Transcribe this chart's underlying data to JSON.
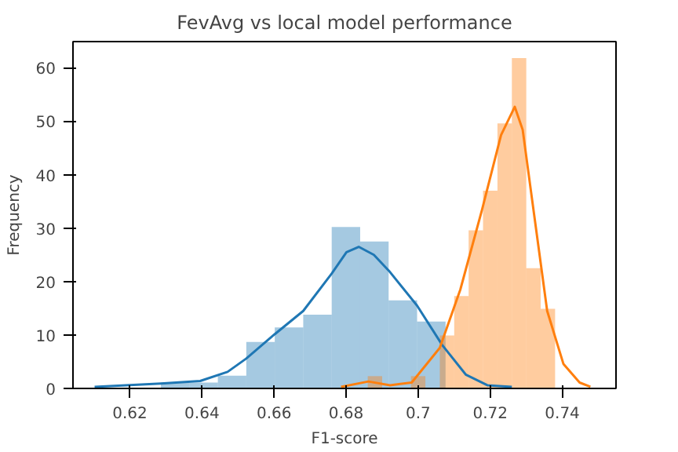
{
  "chart_data": {
    "type": "histogram",
    "title": "FevAvg vs local model performance",
    "xlabel": "F1-score",
    "ylabel": "Frequency",
    "xlim": [
      0.6042,
      0.7549
    ],
    "ylim": [
      0,
      64.9
    ],
    "xticks": [
      0.62,
      0.64,
      0.66,
      0.68,
      0.7,
      0.72,
      0.74
    ],
    "yticks": [
      0,
      10,
      20,
      30,
      40,
      50,
      60
    ],
    "grid": false,
    "series": [
      {
        "color": "#1f77b4",
        "bins": [
          0.6286,
          0.6365,
          0.6444,
          0.6523,
          0.6602,
          0.6681,
          0.676,
          0.6839,
          0.6918,
          0.6997,
          0.7076
        ],
        "values": [
          1.1,
          1.1,
          2.4,
          8.7,
          11.4,
          13.8,
          30.2,
          27.5,
          16.5,
          12.5
        ]
      },
      {
        "color": "#ff7f0e",
        "bins": [
          0.686,
          0.69,
          0.694,
          0.698,
          0.702,
          0.706,
          0.71,
          0.714,
          0.718,
          0.722,
          0.726,
          0.73,
          0.734,
          0.738
        ],
        "values": [
          2.3,
          0,
          0,
          2.3,
          0,
          9.9,
          17.3,
          29.6,
          37.0,
          49.6,
          61.8,
          22.5,
          14.9
        ]
      },
      {
        "type": "line",
        "color": "#1f77b4",
        "x": [
          0.6102,
          0.6286,
          0.6395,
          0.6471,
          0.6523,
          0.6601,
          0.6681,
          0.676,
          0.6801,
          0.6835,
          0.6877,
          0.6919,
          0.6997,
          0.7067,
          0.7132,
          0.7192,
          0.726
        ],
        "values": [
          0.3,
          0.9,
          1.4,
          3.1,
          5.6,
          10.1,
          14.5,
          21.5,
          25.5,
          26.5,
          25.0,
          22.0,
          15.5,
          8.1,
          2.6,
          0.6,
          0.3
        ]
      },
      {
        "type": "line",
        "color": "#ff7f0e",
        "x": [
          0.6786,
          0.6862,
          0.6922,
          0.6982,
          0.706,
          0.7117,
          0.7177,
          0.723,
          0.7268,
          0.729,
          0.732,
          0.7358,
          0.7403,
          0.7448,
          0.7478
        ],
        "values": [
          0.3,
          1.3,
          0.6,
          1.1,
          7.6,
          18.5,
          33.4,
          47.4,
          52.7,
          48.4,
          33.4,
          14.5,
          4.6,
          1.1,
          0.3
        ]
      }
    ]
  }
}
